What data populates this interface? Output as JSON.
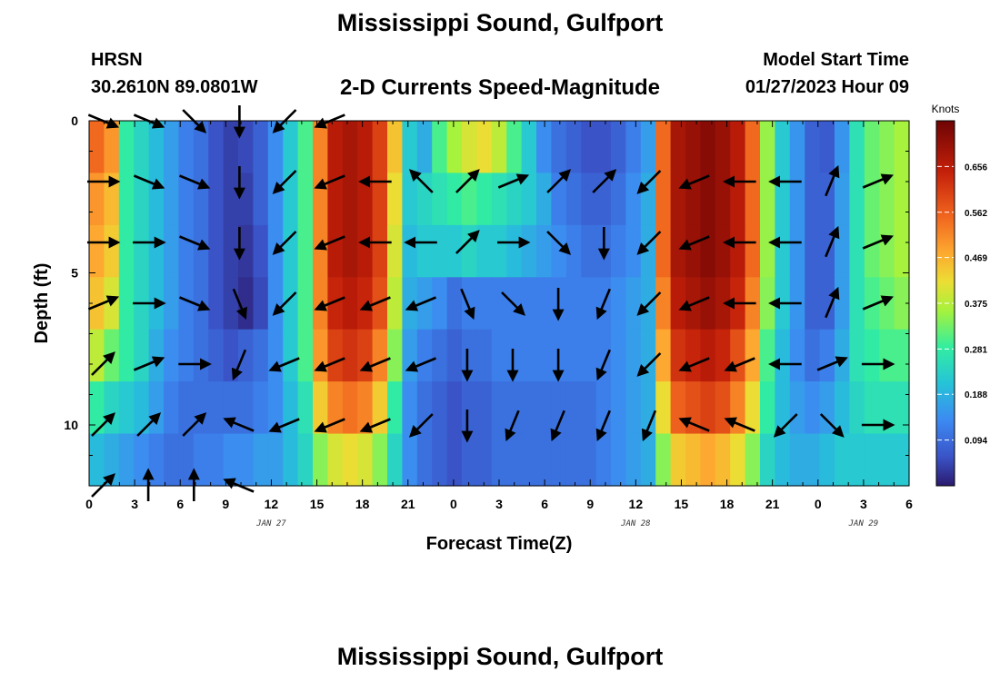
{
  "header": {
    "title": "Mississippi Sound, Gulfport",
    "station_id": "HRSN",
    "station_coords": "30.2610N  89.0801W",
    "subtitle": "2-D Currents Speed-Magnitude",
    "start_time_label": "Model Start Time",
    "start_time_value": "01/27/2023 Hour 09"
  },
  "footer": {
    "title": "Mississippi Sound, Gulfport"
  },
  "chart_data": {
    "type": "heatmap",
    "title": "2-D Currents Speed-Magnitude",
    "xlabel": "Forecast Time(Z)",
    "ylabel": "Depth (ft)",
    "x_hours": [
      0,
      1,
      2,
      3,
      4,
      5,
      6,
      7,
      8,
      9,
      10,
      11,
      12,
      13,
      14,
      15,
      16,
      17,
      18,
      19,
      20,
      21,
      22,
      23,
      24,
      25,
      26,
      27,
      28,
      29,
      30,
      31,
      32,
      33,
      34,
      35,
      36,
      37,
      38,
      39,
      40,
      41,
      42,
      43,
      44,
      45,
      46,
      47,
      48,
      49,
      50,
      51,
      52,
      53,
      54
    ],
    "x_tick_labels": [
      "0",
      "3",
      "6",
      "9",
      "12",
      "15",
      "18",
      "21",
      "0",
      "3",
      "6",
      "9",
      "12",
      "15",
      "18",
      "21",
      "0",
      "3",
      "6"
    ],
    "x_tick_hours": [
      0,
      3,
      6,
      9,
      12,
      15,
      18,
      21,
      24,
      27,
      30,
      33,
      36,
      39,
      42,
      45,
      48,
      51,
      54
    ],
    "date_labels": [
      {
        "text": "JAN 27",
        "hour": 12
      },
      {
        "text": "JAN 28",
        "hour": 36
      },
      {
        "text": "JAN 29",
        "hour": 51
      }
    ],
    "depths_ft": [
      0,
      2,
      4,
      6,
      8,
      10,
      12
    ],
    "y_tick_labels": [
      "0",
      "5",
      "10"
    ],
    "y_tick_values": [
      0,
      5,
      10
    ],
    "ylim": [
      0,
      12
    ],
    "xlim": [
      0,
      54
    ],
    "colorbar": {
      "unit": "Knots",
      "range": [
        0,
        0.75
      ],
      "tick_labels": [
        "0.094",
        "0.188",
        "0.281",
        "0.375",
        "0.469",
        "0.562",
        "0.656"
      ],
      "tick_values": [
        0.094,
        0.188,
        0.281,
        0.375,
        0.469,
        0.562,
        0.656
      ]
    },
    "speed_knots": [
      [
        0.55,
        0.5,
        0.28,
        0.24,
        0.2,
        0.16,
        0.12,
        0.1,
        0.06,
        0.04,
        0.05,
        0.08,
        0.14,
        0.22,
        0.3,
        0.52,
        0.66,
        0.68,
        0.66,
        0.6,
        0.45,
        0.22,
        0.18,
        0.3,
        0.36,
        0.4,
        0.42,
        0.38,
        0.3,
        0.22,
        0.14,
        0.1,
        0.08,
        0.06,
        0.06,
        0.08,
        0.12,
        0.16,
        0.55,
        0.68,
        0.7,
        0.72,
        0.7,
        0.66,
        0.55,
        0.35,
        0.22,
        0.15,
        0.08,
        0.07,
        0.15,
        0.26,
        0.32,
        0.34,
        0.36
      ],
      [
        0.5,
        0.46,
        0.28,
        0.24,
        0.2,
        0.16,
        0.12,
        0.1,
        0.06,
        0.04,
        0.04,
        0.08,
        0.14,
        0.22,
        0.3,
        0.52,
        0.66,
        0.68,
        0.66,
        0.6,
        0.42,
        0.22,
        0.24,
        0.26,
        0.28,
        0.3,
        0.28,
        0.26,
        0.24,
        0.22,
        0.18,
        0.12,
        0.1,
        0.08,
        0.08,
        0.1,
        0.14,
        0.18,
        0.55,
        0.68,
        0.7,
        0.72,
        0.7,
        0.66,
        0.55,
        0.35,
        0.22,
        0.15,
        0.08,
        0.08,
        0.16,
        0.26,
        0.32,
        0.34,
        0.36
      ],
      [
        0.48,
        0.44,
        0.28,
        0.24,
        0.2,
        0.16,
        0.12,
        0.1,
        0.06,
        0.04,
        0.03,
        0.06,
        0.14,
        0.22,
        0.3,
        0.52,
        0.66,
        0.68,
        0.66,
        0.6,
        0.4,
        0.2,
        0.22,
        0.22,
        0.22,
        0.24,
        0.22,
        0.22,
        0.2,
        0.18,
        0.16,
        0.14,
        0.12,
        0.1,
        0.1,
        0.12,
        0.14,
        0.18,
        0.55,
        0.68,
        0.7,
        0.72,
        0.7,
        0.66,
        0.55,
        0.35,
        0.22,
        0.15,
        0.08,
        0.08,
        0.16,
        0.26,
        0.32,
        0.34,
        0.36
      ],
      [
        0.45,
        0.4,
        0.28,
        0.24,
        0.2,
        0.16,
        0.12,
        0.1,
        0.06,
        0.04,
        0.02,
        0.05,
        0.14,
        0.22,
        0.3,
        0.52,
        0.64,
        0.66,
        0.64,
        0.58,
        0.38,
        0.18,
        0.16,
        0.14,
        0.1,
        0.12,
        0.12,
        0.12,
        0.12,
        0.12,
        0.12,
        0.12,
        0.12,
        0.12,
        0.12,
        0.14,
        0.16,
        0.18,
        0.52,
        0.66,
        0.68,
        0.7,
        0.68,
        0.64,
        0.52,
        0.34,
        0.22,
        0.15,
        0.08,
        0.08,
        0.16,
        0.26,
        0.3,
        0.32,
        0.34
      ],
      [
        0.38,
        0.32,
        0.28,
        0.24,
        0.18,
        0.14,
        0.12,
        0.1,
        0.08,
        0.06,
        0.08,
        0.1,
        0.14,
        0.22,
        0.3,
        0.5,
        0.6,
        0.62,
        0.6,
        0.52,
        0.34,
        0.16,
        0.12,
        0.1,
        0.08,
        0.1,
        0.1,
        0.12,
        0.12,
        0.12,
        0.12,
        0.12,
        0.12,
        0.12,
        0.12,
        0.14,
        0.16,
        0.18,
        0.48,
        0.62,
        0.64,
        0.66,
        0.64,
        0.58,
        0.48,
        0.3,
        0.2,
        0.14,
        0.1,
        0.12,
        0.18,
        0.26,
        0.28,
        0.3,
        0.3
      ],
      [
        0.28,
        0.24,
        0.22,
        0.2,
        0.16,
        0.12,
        0.1,
        0.1,
        0.1,
        0.1,
        0.1,
        0.12,
        0.14,
        0.2,
        0.26,
        0.44,
        0.52,
        0.54,
        0.52,
        0.44,
        0.28,
        0.14,
        0.1,
        0.08,
        0.06,
        0.08,
        0.08,
        0.1,
        0.1,
        0.1,
        0.1,
        0.1,
        0.1,
        0.1,
        0.12,
        0.14,
        0.16,
        0.18,
        0.42,
        0.56,
        0.58,
        0.6,
        0.58,
        0.52,
        0.42,
        0.28,
        0.2,
        0.16,
        0.14,
        0.16,
        0.2,
        0.24,
        0.26,
        0.26,
        0.26
      ],
      [
        0.2,
        0.18,
        0.16,
        0.14,
        0.12,
        0.1,
        0.1,
        0.12,
        0.12,
        0.14,
        0.14,
        0.16,
        0.16,
        0.2,
        0.24,
        0.34,
        0.4,
        0.42,
        0.4,
        0.34,
        0.24,
        0.14,
        0.1,
        0.08,
        0.06,
        0.08,
        0.08,
        0.1,
        0.1,
        0.1,
        0.1,
        0.1,
        0.1,
        0.1,
        0.12,
        0.14,
        0.16,
        0.18,
        0.34,
        0.44,
        0.46,
        0.48,
        0.46,
        0.42,
        0.34,
        0.24,
        0.2,
        0.18,
        0.18,
        0.2,
        0.22,
        0.22,
        0.22,
        0.22,
        0.22
      ]
    ],
    "vectors": [
      {
        "t": 0,
        "d": 0,
        "dir": "ESE"
      },
      {
        "t": 3,
        "d": 0,
        "dir": "ESE"
      },
      {
        "t": 6,
        "d": 0,
        "dir": "SE"
      },
      {
        "t": 9,
        "d": 0,
        "dir": "S"
      },
      {
        "t": 12,
        "d": 0,
        "dir": "SW"
      },
      {
        "t": 15,
        "d": 0,
        "dir": "WSW"
      },
      {
        "t": 0,
        "d": 2,
        "dir": "E"
      },
      {
        "t": 3,
        "d": 2,
        "dir": "ESE"
      },
      {
        "t": 6,
        "d": 2,
        "dir": "ESE"
      },
      {
        "t": 9,
        "d": 2,
        "dir": "S"
      },
      {
        "t": 12,
        "d": 2,
        "dir": "SW"
      },
      {
        "t": 15,
        "d": 2,
        "dir": "WSW"
      },
      {
        "t": 18,
        "d": 2,
        "dir": "W"
      },
      {
        "t": 21,
        "d": 2,
        "dir": "NW"
      },
      {
        "t": 24,
        "d": 2,
        "dir": "NE"
      },
      {
        "t": 27,
        "d": 2,
        "dir": "ENE"
      },
      {
        "t": 30,
        "d": 2,
        "dir": "NE"
      },
      {
        "t": 33,
        "d": 2,
        "dir": "NE"
      },
      {
        "t": 36,
        "d": 2,
        "dir": "SW"
      },
      {
        "t": 39,
        "d": 2,
        "dir": "WSW"
      },
      {
        "t": 42,
        "d": 2,
        "dir": "W"
      },
      {
        "t": 45,
        "d": 2,
        "dir": "W"
      },
      {
        "t": 48,
        "d": 2,
        "dir": "NNE"
      },
      {
        "t": 51,
        "d": 2,
        "dir": "ENE"
      },
      {
        "t": 0,
        "d": 4,
        "dir": "E"
      },
      {
        "t": 3,
        "d": 4,
        "dir": "E"
      },
      {
        "t": 6,
        "d": 4,
        "dir": "ESE"
      },
      {
        "t": 9,
        "d": 4,
        "dir": "S"
      },
      {
        "t": 12,
        "d": 4,
        "dir": "SW"
      },
      {
        "t": 15,
        "d": 4,
        "dir": "WSW"
      },
      {
        "t": 18,
        "d": 4,
        "dir": "W"
      },
      {
        "t": 21,
        "d": 4,
        "dir": "W"
      },
      {
        "t": 24,
        "d": 4,
        "dir": "NE"
      },
      {
        "t": 27,
        "d": 4,
        "dir": "E"
      },
      {
        "t": 30,
        "d": 4,
        "dir": "SE"
      },
      {
        "t": 33,
        "d": 4,
        "dir": "S"
      },
      {
        "t": 36,
        "d": 4,
        "dir": "SW"
      },
      {
        "t": 39,
        "d": 4,
        "dir": "WSW"
      },
      {
        "t": 42,
        "d": 4,
        "dir": "W"
      },
      {
        "t": 45,
        "d": 4,
        "dir": "W"
      },
      {
        "t": 48,
        "d": 4,
        "dir": "NNE"
      },
      {
        "t": 51,
        "d": 4,
        "dir": "ENE"
      },
      {
        "t": 0,
        "d": 6,
        "dir": "ENE"
      },
      {
        "t": 3,
        "d": 6,
        "dir": "E"
      },
      {
        "t": 6,
        "d": 6,
        "dir": "ESE"
      },
      {
        "t": 9,
        "d": 6,
        "dir": "SSE"
      },
      {
        "t": 12,
        "d": 6,
        "dir": "SW"
      },
      {
        "t": 15,
        "d": 6,
        "dir": "WSW"
      },
      {
        "t": 18,
        "d": 6,
        "dir": "WSW"
      },
      {
        "t": 21,
        "d": 6,
        "dir": "WSW"
      },
      {
        "t": 24,
        "d": 6,
        "dir": "SSE"
      },
      {
        "t": 27,
        "d": 6,
        "dir": "SE"
      },
      {
        "t": 30,
        "d": 6,
        "dir": "S"
      },
      {
        "t": 33,
        "d": 6,
        "dir": "SSW"
      },
      {
        "t": 36,
        "d": 6,
        "dir": "SW"
      },
      {
        "t": 39,
        "d": 6,
        "dir": "WSW"
      },
      {
        "t": 42,
        "d": 6,
        "dir": "W"
      },
      {
        "t": 45,
        "d": 6,
        "dir": "W"
      },
      {
        "t": 48,
        "d": 6,
        "dir": "NNE"
      },
      {
        "t": 51,
        "d": 6,
        "dir": "ENE"
      },
      {
        "t": 0,
        "d": 8,
        "dir": "NE"
      },
      {
        "t": 3,
        "d": 8,
        "dir": "ENE"
      },
      {
        "t": 6,
        "d": 8,
        "dir": "E"
      },
      {
        "t": 9,
        "d": 8,
        "dir": "SSW"
      },
      {
        "t": 12,
        "d": 8,
        "dir": "WSW"
      },
      {
        "t": 15,
        "d": 8,
        "dir": "WSW"
      },
      {
        "t": 18,
        "d": 8,
        "dir": "WSW"
      },
      {
        "t": 21,
        "d": 8,
        "dir": "WSW"
      },
      {
        "t": 24,
        "d": 8,
        "dir": "S"
      },
      {
        "t": 27,
        "d": 8,
        "dir": "S"
      },
      {
        "t": 30,
        "d": 8,
        "dir": "S"
      },
      {
        "t": 33,
        "d": 8,
        "dir": "SSW"
      },
      {
        "t": 36,
        "d": 8,
        "dir": "SW"
      },
      {
        "t": 39,
        "d": 8,
        "dir": "WSW"
      },
      {
        "t": 42,
        "d": 8,
        "dir": "WSW"
      },
      {
        "t": 45,
        "d": 8,
        "dir": "W"
      },
      {
        "t": 48,
        "d": 8,
        "dir": "ENE"
      },
      {
        "t": 51,
        "d": 8,
        "dir": "E"
      },
      {
        "t": 0,
        "d": 10,
        "dir": "NE"
      },
      {
        "t": 3,
        "d": 10,
        "dir": "NE"
      },
      {
        "t": 6,
        "d": 10,
        "dir": "NE"
      },
      {
        "t": 9,
        "d": 10,
        "dir": "WNW"
      },
      {
        "t": 12,
        "d": 10,
        "dir": "WSW"
      },
      {
        "t": 15,
        "d": 10,
        "dir": "WSW"
      },
      {
        "t": 18,
        "d": 10,
        "dir": "WSW"
      },
      {
        "t": 21,
        "d": 10,
        "dir": "SW"
      },
      {
        "t": 24,
        "d": 10,
        "dir": "S"
      },
      {
        "t": 27,
        "d": 10,
        "dir": "SSW"
      },
      {
        "t": 30,
        "d": 10,
        "dir": "SSW"
      },
      {
        "t": 33,
        "d": 10,
        "dir": "SSW"
      },
      {
        "t": 36,
        "d": 10,
        "dir": "SSW"
      },
      {
        "t": 39,
        "d": 10,
        "dir": "WNW"
      },
      {
        "t": 42,
        "d": 10,
        "dir": "WNW"
      },
      {
        "t": 45,
        "d": 10,
        "dir": "SW"
      },
      {
        "t": 48,
        "d": 10,
        "dir": "SE"
      },
      {
        "t": 51,
        "d": 10,
        "dir": "E"
      },
      {
        "t": 0,
        "d": 12,
        "dir": "NE"
      },
      {
        "t": 3,
        "d": 12,
        "dir": "N"
      },
      {
        "t": 6,
        "d": 12,
        "dir": "N"
      },
      {
        "t": 9,
        "d": 12,
        "dir": "WNW"
      }
    ]
  }
}
